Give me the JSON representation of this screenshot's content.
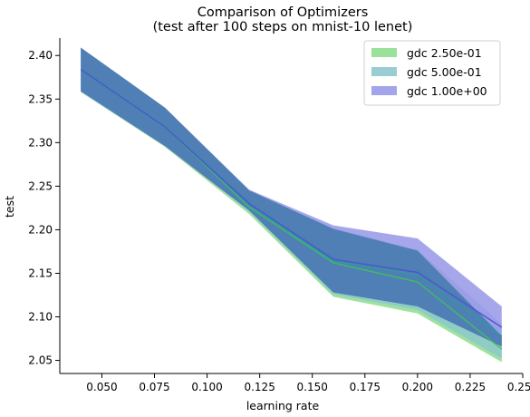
{
  "chart_data": {
    "type": "line",
    "title": "Comparison of Optimizers",
    "subtitle": "(test after 100 steps on mnist-10 lenet)",
    "xlabel": "learning rate",
    "ylabel": "test",
    "xlim": [
      0.03,
      0.25
    ],
    "ylim": [
      2.035,
      2.42
    ],
    "xticks": [
      "0.050",
      "0.075",
      "0.100",
      "0.125",
      "0.150",
      "0.175",
      "0.200",
      "0.225",
      "0.250"
    ],
    "yticks": [
      "2.05",
      "2.10",
      "2.15",
      "2.20",
      "2.25",
      "2.30",
      "2.35",
      "2.40"
    ],
    "grid": false,
    "legend_position": "top-right",
    "x": [
      0.04,
      0.08,
      0.12,
      0.16,
      0.2,
      0.24
    ],
    "series": [
      {
        "name": "gdc 2.50e-01",
        "color": "#8fde8f",
        "line_color": "#3fbf5f",
        "mean": [
          2.384,
          2.318,
          2.226,
          2.162,
          2.14,
          2.063
        ],
        "lower": [
          2.358,
          2.295,
          2.218,
          2.123,
          2.104,
          2.048
        ],
        "upper": [
          2.409,
          2.34,
          2.245,
          2.201,
          2.176,
          2.078
        ]
      },
      {
        "name": "gdc 5.00e-01",
        "color": "#8ec8cc",
        "line_color": "#2f9a9e",
        "mean": [
          2.384,
          2.318,
          2.228,
          2.164,
          2.148,
          2.078
        ],
        "lower": [
          2.358,
          2.296,
          2.221,
          2.126,
          2.108,
          2.052
        ],
        "upper": [
          2.409,
          2.34,
          2.245,
          2.202,
          2.177,
          2.092
        ]
      },
      {
        "name": "gdc 1.00e+00",
        "color": "#9a9ae8",
        "line_color": "#4a54cf",
        "mean": [
          2.384,
          2.318,
          2.23,
          2.166,
          2.151,
          2.088
        ],
        "lower": [
          2.359,
          2.296,
          2.222,
          2.128,
          2.112,
          2.066
        ],
        "upper": [
          2.409,
          2.34,
          2.246,
          2.205,
          2.19,
          2.112
        ]
      }
    ],
    "overlap_color": "#4f7fb4"
  }
}
